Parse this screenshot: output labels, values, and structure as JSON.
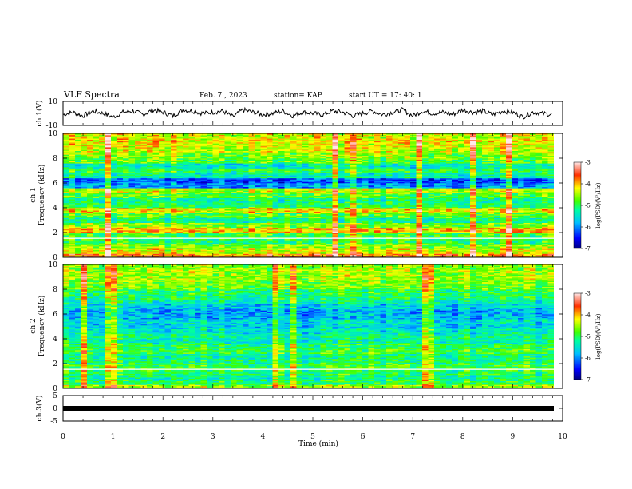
{
  "header": {
    "title": "VLF Spectra",
    "date": "Feb. 7 , 2023",
    "station": "station= KAP",
    "start": "start  UT  =   17: 40: 1"
  },
  "chart_data": [
    {
      "type": "line",
      "panel": "ch1-waveform",
      "ylabel": "ch.1(V)",
      "ylim": [
        -10,
        10
      ],
      "yticks": [
        "10",
        "-10"
      ],
      "xlim": [
        0,
        10
      ],
      "series_color": "#000000",
      "x": [
        0,
        0.2,
        0.4,
        0.6,
        0.8,
        1.0,
        1.2,
        1.4,
        1.6,
        1.8,
        2.0,
        2.2,
        2.4,
        2.6,
        2.8,
        3.0,
        3.2,
        3.4,
        3.6,
        3.8,
        4.0,
        4.2,
        4.4,
        4.6,
        4.8,
        5.0,
        5.2,
        5.4,
        5.6,
        5.8,
        6.0,
        6.2,
        6.4,
        6.6,
        6.8,
        7.0,
        7.2,
        7.4,
        7.6,
        7.8,
        8.0,
        8.2,
        8.4,
        8.6,
        8.8,
        9.0,
        9.2,
        9.4,
        9.6,
        9.8
      ],
      "y": [
        -1,
        1,
        -2,
        2,
        0,
        -3,
        1,
        2,
        -1,
        3,
        1,
        -2,
        3,
        2,
        0,
        1,
        2,
        -3,
        3,
        1,
        -1,
        0,
        2,
        -2,
        1,
        0,
        -1,
        2,
        1,
        -2,
        0,
        2,
        -1,
        1,
        3,
        -2,
        2,
        0,
        1,
        -1,
        3,
        1,
        2,
        -1,
        2,
        1,
        -3,
        1,
        0,
        -1
      ]
    },
    {
      "type": "heatmap",
      "panel": "ch1-spectrogram",
      "ylabel": "ch.1 Frequency (kHz)",
      "ylim": [
        0,
        10
      ],
      "yticks": [
        "0",
        "2",
        "4",
        "6",
        "8",
        "10"
      ],
      "xlim": [
        0,
        10
      ],
      "colorbar": {
        "label": "log(PSD)(V²/Hz)",
        "range": [
          -7,
          -3
        ],
        "ticks": [
          "-3",
          "-4",
          "-5",
          "-6",
          "-7"
        ]
      },
      "band_levels_kHz": [
        [
          0.2,
          -3.8
        ],
        [
          0.5,
          -4.3
        ],
        [
          0.9,
          -4.6
        ],
        [
          1.3,
          -5.0
        ],
        [
          1.8,
          -4.9
        ],
        [
          2.2,
          -4.0
        ],
        [
          2.6,
          -4.6
        ],
        [
          3.0,
          -5.2
        ],
        [
          3.4,
          -4.8
        ],
        [
          3.8,
          -4.2
        ],
        [
          4.2,
          -5.0
        ],
        [
          4.6,
          -5.2
        ],
        [
          5.0,
          -4.8
        ],
        [
          5.4,
          -4.4
        ],
        [
          5.8,
          -5.9
        ],
        [
          6.2,
          -6.2
        ],
        [
          6.6,
          -5.3
        ],
        [
          7.0,
          -5.0
        ],
        [
          7.4,
          -5.4
        ],
        [
          7.8,
          -4.8
        ],
        [
          8.2,
          -4.6
        ],
        [
          8.6,
          -4.4
        ],
        [
          9.0,
          -4.3
        ],
        [
          9.4,
          -4.2
        ],
        [
          9.8,
          -4.3
        ]
      ]
    },
    {
      "type": "heatmap",
      "panel": "ch2-spectrogram",
      "ylabel": "ch.2 Frequency (kHz)",
      "ylim": [
        0,
        10
      ],
      "yticks": [
        "0",
        "2",
        "4",
        "6",
        "8",
        "10"
      ],
      "xlim": [
        0,
        10
      ],
      "colorbar": {
        "label": "log(PSD)(V²/Hz)",
        "range": [
          -7,
          -3
        ],
        "ticks": [
          "-3",
          "-4",
          "-5",
          "-6",
          "-7"
        ]
      },
      "band_levels_kHz": [
        [
          0.2,
          -4.5
        ],
        [
          0.5,
          -5.0
        ],
        [
          0.9,
          -5.2
        ],
        [
          1.3,
          -5.0
        ],
        [
          1.8,
          -4.9
        ],
        [
          2.2,
          -5.1
        ],
        [
          2.6,
          -5.2
        ],
        [
          3.0,
          -4.9
        ],
        [
          3.4,
          -5.0
        ],
        [
          3.8,
          -5.3
        ],
        [
          4.2,
          -5.2
        ],
        [
          4.6,
          -5.4
        ],
        [
          5.0,
          -5.6
        ],
        [
          5.4,
          -5.5
        ],
        [
          5.8,
          -5.8
        ],
        [
          6.2,
          -5.8
        ],
        [
          6.6,
          -5.6
        ],
        [
          7.0,
          -5.3
        ],
        [
          7.4,
          -5.1
        ],
        [
          7.8,
          -5.0
        ],
        [
          8.2,
          -4.7
        ],
        [
          8.6,
          -4.6
        ],
        [
          9.0,
          -4.5
        ],
        [
          9.4,
          -4.5
        ],
        [
          9.8,
          -4.6
        ]
      ]
    },
    {
      "type": "line",
      "panel": "ch3-waveform",
      "ylabel": "ch.3(V)",
      "ylim": [
        -5,
        5
      ],
      "yticks": [
        "5",
        "0",
        "-5"
      ],
      "xlim": [
        0,
        10
      ],
      "x": [
        0,
        9.8
      ],
      "y": [
        0,
        0
      ],
      "xlabel": "Time  (min)",
      "xticks": [
        "0",
        "1",
        "2",
        "3",
        "4",
        "5",
        "6",
        "7",
        "8",
        "9",
        "10"
      ]
    }
  ]
}
